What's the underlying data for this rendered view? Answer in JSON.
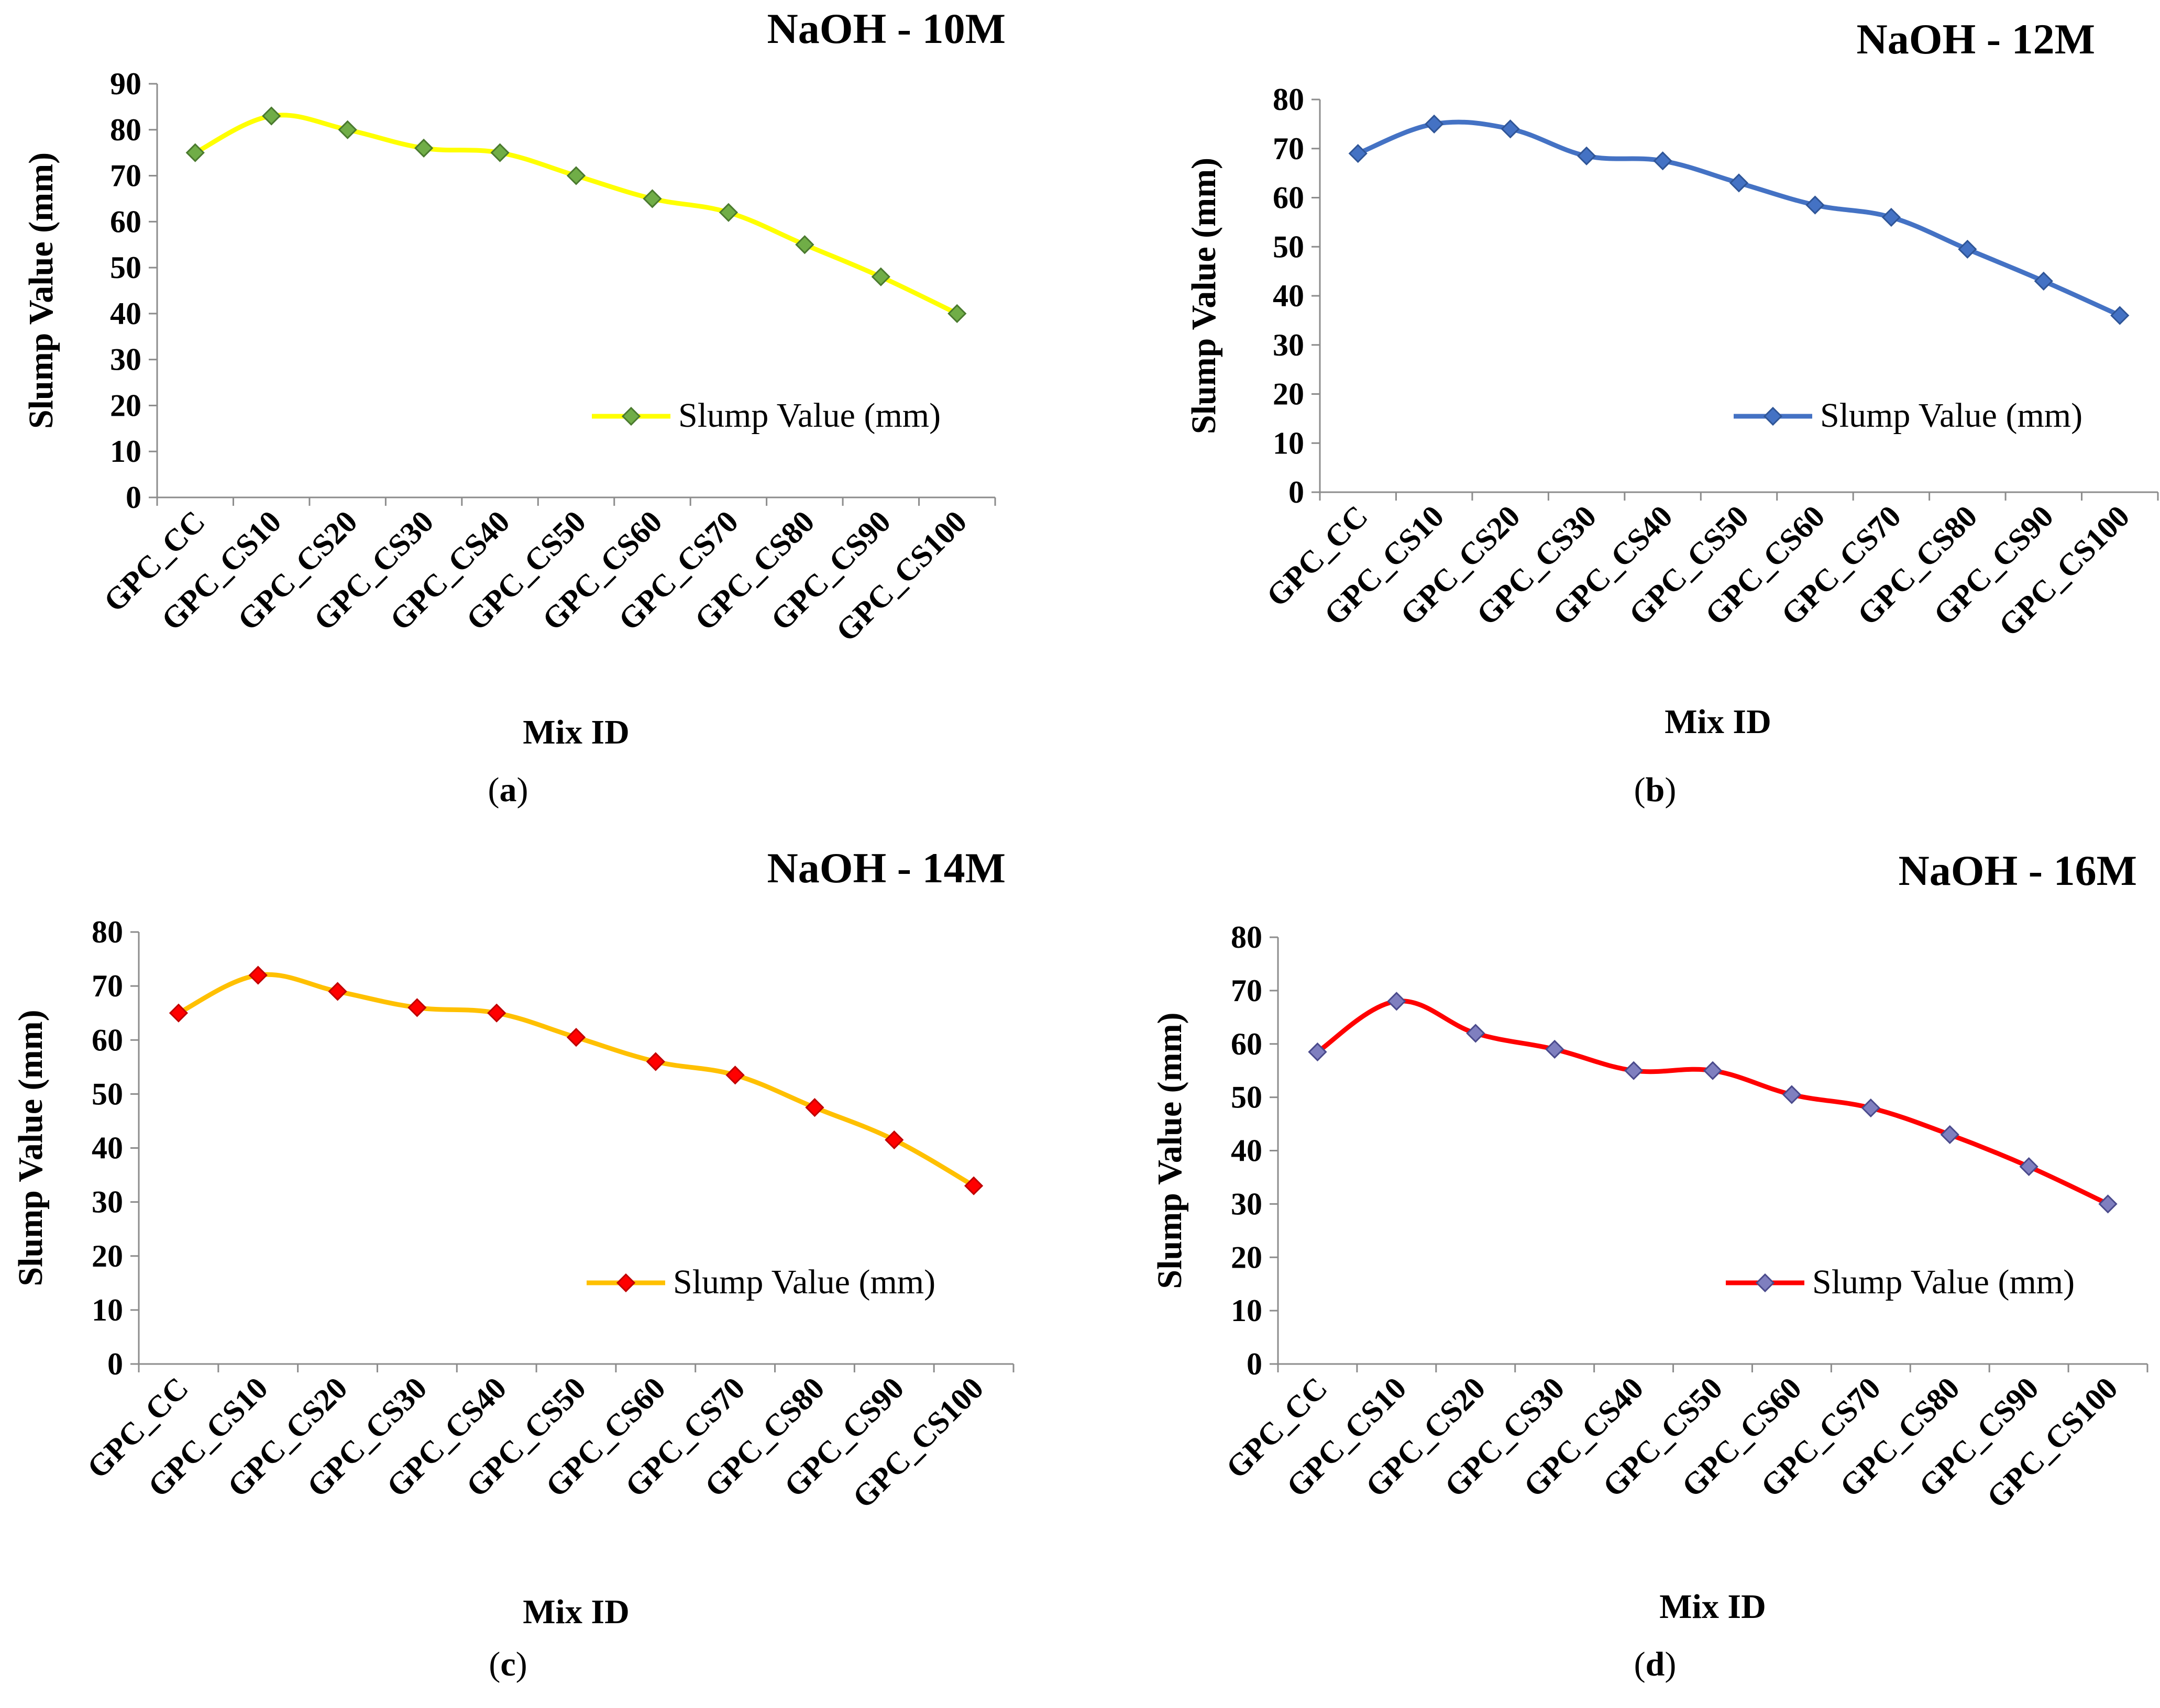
{
  "chart_data": [
    {
      "type": "line",
      "title": "NaOH - 10M",
      "xlabel": "Mix ID",
      "ylabel": "Slump Value (mm)",
      "ylim": [
        0,
        90
      ],
      "yticks": [
        0,
        10,
        20,
        30,
        40,
        50,
        60,
        70,
        80,
        90
      ],
      "categories": [
        "GPC_CC",
        "GPC_CS10",
        "GPC_CS20",
        "GPC_CS30",
        "GPC_CS40",
        "GPC_CS50",
        "GPC_CS60",
        "GPC_CS70",
        "GPC_CS80",
        "GPC_CS90",
        "GPC_CS100"
      ],
      "series": [
        {
          "name": "Slump Value (mm)",
          "values": [
            75,
            83,
            80,
            76,
            75,
            70,
            65,
            62,
            55,
            48,
            40
          ],
          "color": "#ffff00",
          "marker_color": "#70ad47",
          "marker_edge": "#4a7a2e"
        }
      ],
      "legend": "bottom-right",
      "grid": false,
      "caption_letter": "a"
    },
    {
      "type": "line",
      "title": "NaOH - 12M",
      "xlabel": "Mix ID",
      "ylabel": "Slump Value (mm)",
      "ylim": [
        0,
        80
      ],
      "yticks": [
        0,
        10,
        20,
        30,
        40,
        50,
        60,
        70,
        80
      ],
      "categories": [
        "GPC_CC",
        "GPC_CS10",
        "GPC_CS20",
        "GPC_CS30",
        "GPC_CS40",
        "GPC_CS50",
        "GPC_CS60",
        "GPC_CS70",
        "GPC_CS80",
        "GPC_CS90",
        "GPC_CS100"
      ],
      "series": [
        {
          "name": "Slump Value (mm)",
          "values": [
            69,
            75,
            74,
            68.5,
            67.5,
            63,
            58.5,
            56,
            49.5,
            43,
            36
          ],
          "color": "#4472c4",
          "marker_color": "#4472c4",
          "marker_edge": "#2f5597"
        }
      ],
      "legend": "bottom-right",
      "grid": false,
      "caption_letter": "b"
    },
    {
      "type": "line",
      "title": "NaOH - 14M",
      "xlabel": "Mix ID",
      "ylabel": "Slump Value (mm)",
      "ylim": [
        0,
        80
      ],
      "yticks": [
        0,
        10,
        20,
        30,
        40,
        50,
        60,
        70,
        80
      ],
      "categories": [
        "GPC_CC",
        "GPC_CS10",
        "GPC_CS20",
        "GPC_CS30",
        "GPC_CS40",
        "GPC_CS50",
        "GPC_CS60",
        "GPC_CS70",
        "GPC_CS80",
        "GPC_CS90",
        "GPC_CS100"
      ],
      "series": [
        {
          "name": "Slump Value (mm)",
          "values": [
            65,
            72,
            69,
            66,
            65,
            60.5,
            56,
            53.5,
            47.5,
            41.5,
            33
          ],
          "color": "#ffc000",
          "marker_color": "#ff0000",
          "marker_edge": "#c00000"
        }
      ],
      "legend": "bottom-right",
      "grid": false,
      "caption_letter": "c"
    },
    {
      "type": "line",
      "title": "NaOH - 16M",
      "xlabel": "Mix ID",
      "ylabel": "Slump Value (mm)",
      "ylim": [
        0,
        80
      ],
      "yticks": [
        0,
        10,
        20,
        30,
        40,
        50,
        60,
        70,
        80
      ],
      "categories": [
        "GPC_CC",
        "GPC_CS10",
        "GPC_CS20",
        "GPC_CS30",
        "GPC_CS40",
        "GPC_CS50",
        "GPC_CS60",
        "GPC_CS70",
        "GPC_CS80",
        "GPC_CS90",
        "GPC_CS100"
      ],
      "series": [
        {
          "name": "Slump Value (mm)",
          "values": [
            58.5,
            68,
            62,
            59,
            55,
            55,
            50.5,
            48,
            43,
            37,
            30
          ],
          "color": "#ff0000",
          "marker_color": "#7f7fbf",
          "marker_edge": "#4a4a8c"
        }
      ],
      "legend": "bottom-right",
      "grid": false,
      "caption_letter": "d"
    }
  ]
}
